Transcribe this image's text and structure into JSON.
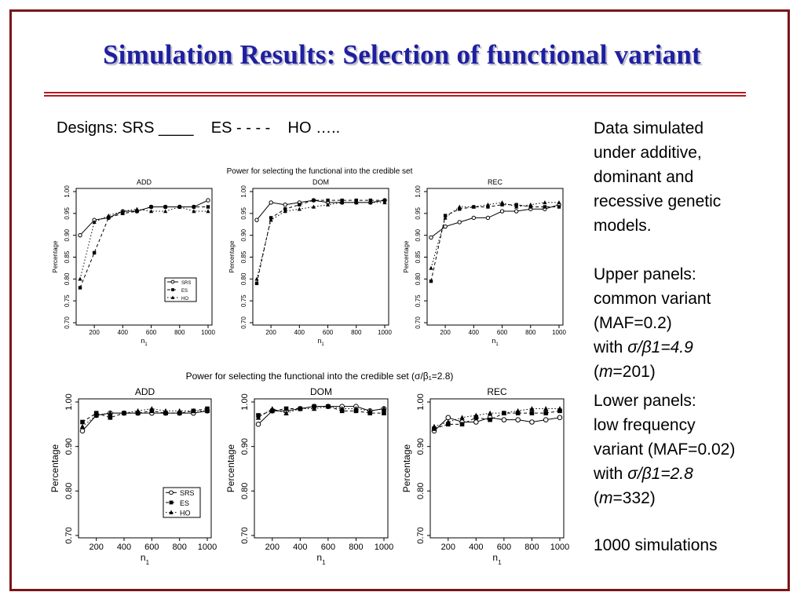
{
  "slide": {
    "title": "Simulation Results:  Selection of functional variant",
    "designs": "Designs: SRS ____    ES - - - -    HO …..",
    "colors": {
      "title": "#1f1fa0",
      "rule": "#b11d22",
      "frame": "#7b1418"
    }
  },
  "notes": {
    "block1": [
      "Data simulated",
      "under additive,",
      "dominant and",
      "recessive genetic",
      "models."
    ],
    "block2": {
      "l1": "Upper panels:",
      "l2": "common variant",
      "l3": "(MAF=0.2)",
      "l4_pre": "with ",
      "l4_it": "σ/β1=4.9",
      "l5_open": "(",
      "l5_it": "m",
      "l5_rest": "=201)"
    },
    "block3": {
      "l1": "Lower panels:",
      "l2": "low frequency",
      "l3": "variant (MAF=0.02)",
      "l4_pre": "with ",
      "l4_it": "σ/β1=2.8",
      "l5_open": "(",
      "l5_it": "m",
      "l5_rest": "=332)"
    },
    "block4": "1000 simulations"
  },
  "chart_data": [
    {
      "type": "line",
      "title": "Power for selecting the functional into the credible set",
      "xlabel": "n1",
      "ylabel": "Percentage",
      "x": [
        100,
        200,
        300,
        400,
        500,
        600,
        700,
        800,
        900,
        1000
      ],
      "xticks": [
        200,
        400,
        600,
        800,
        1000
      ],
      "ylim": [
        0.7,
        1.0
      ],
      "yticks": [
        0.7,
        0.75,
        0.8,
        0.85,
        0.9,
        0.95,
        1.0
      ],
      "ytick_labels": [
        "0.70",
        "0.75",
        "0.80",
        "0.85",
        "0.90",
        "0.95",
        "1.00"
      ],
      "legend": {
        "entries": [
          "SRS",
          "ES",
          "HO"
        ],
        "placement": "bottom-right of ADD panel"
      },
      "panels": [
        {
          "name": "ADD",
          "series": [
            {
              "name": "SRS",
              "values": [
                0.9,
                0.935,
                0.94,
                0.955,
                0.955,
                0.965,
                0.965,
                0.965,
                0.965,
                0.98
              ]
            },
            {
              "name": "ES",
              "values": [
                0.78,
                0.86,
                0.94,
                0.95,
                0.955,
                0.965,
                0.965,
                0.965,
                0.965,
                0.965
              ]
            },
            {
              "name": "HO",
              "values": [
                0.8,
                0.93,
                0.945,
                0.955,
                0.96,
                0.955,
                0.955,
                0.965,
                0.955,
                0.955
              ]
            }
          ]
        },
        {
          "name": "DOM",
          "series": [
            {
              "name": "SRS",
              "values": [
                0.935,
                0.975,
                0.97,
                0.975,
                0.98,
                0.975,
                0.975,
                0.975,
                0.975,
                0.98
              ]
            },
            {
              "name": "ES",
              "values": [
                0.79,
                0.94,
                0.96,
                0.97,
                0.98,
                0.98,
                0.98,
                0.98,
                0.98,
                0.98
              ]
            },
            {
              "name": "HO",
              "values": [
                0.8,
                0.935,
                0.955,
                0.96,
                0.965,
                0.97,
                0.975,
                0.975,
                0.975,
                0.975
              ]
            }
          ]
        },
        {
          "name": "REC",
          "series": [
            {
              "name": "SRS",
              "values": [
                0.895,
                0.92,
                0.93,
                0.94,
                0.94,
                0.955,
                0.955,
                0.96,
                0.96,
                0.97
              ]
            },
            {
              "name": "ES",
              "values": [
                0.795,
                0.945,
                0.96,
                0.965,
                0.965,
                0.97,
                0.97,
                0.965,
                0.965,
                0.965
              ]
            },
            {
              "name": "HO",
              "values": [
                0.825,
                0.94,
                0.965,
                0.965,
                0.97,
                0.975,
                0.965,
                0.97,
                0.975,
                0.975
              ]
            }
          ]
        }
      ]
    },
    {
      "type": "line",
      "title": "Power for selecting the functional into the credible set (σ/β₁=2.8)",
      "xlabel": "n1",
      "ylabel": "Percentage",
      "x": [
        100,
        200,
        300,
        400,
        500,
        600,
        700,
        800,
        900,
        1000
      ],
      "xticks": [
        200,
        400,
        600,
        800,
        1000
      ],
      "ylim": [
        0.7,
        1.0
      ],
      "yticks": [
        0.7,
        0.8,
        0.9,
        1.0
      ],
      "ytick_labels": [
        "0.70",
        "0.80",
        "0.90",
        "1.00"
      ],
      "legend": {
        "entries": [
          "SRS",
          "ES",
          "HO"
        ],
        "placement": "bottom-right of ADD panel"
      },
      "panels": [
        {
          "name": "ADD",
          "series": [
            {
              "name": "SRS",
              "values": [
                0.935,
                0.97,
                0.975,
                0.975,
                0.975,
                0.975,
                0.975,
                0.975,
                0.975,
                0.98
              ]
            },
            {
              "name": "ES",
              "values": [
                0.955,
                0.975,
                0.965,
                0.975,
                0.975,
                0.98,
                0.975,
                0.975,
                0.98,
                0.985
              ]
            },
            {
              "name": "HO",
              "values": [
                0.945,
                0.97,
                0.975,
                0.975,
                0.98,
                0.985,
                0.98,
                0.98,
                0.98,
                0.98
              ]
            }
          ]
        },
        {
          "name": "DOM",
          "series": [
            {
              "name": "SRS",
              "values": [
                0.95,
                0.98,
                0.98,
                0.985,
                0.99,
                0.99,
                0.99,
                0.99,
                0.98,
                0.985
              ]
            },
            {
              "name": "ES",
              "values": [
                0.97,
                0.98,
                0.985,
                0.985,
                0.99,
                0.99,
                0.98,
                0.98,
                0.975,
                0.975
              ]
            },
            {
              "name": "HO",
              "values": [
                0.965,
                0.985,
                0.975,
                0.985,
                0.985,
                0.99,
                0.985,
                0.985,
                0.98,
                0.985
              ]
            }
          ]
        },
        {
          "name": "REC",
          "series": [
            {
              "name": "SRS",
              "values": [
                0.935,
                0.965,
                0.955,
                0.955,
                0.965,
                0.96,
                0.96,
                0.955,
                0.96,
                0.965
              ]
            },
            {
              "name": "ES",
              "values": [
                0.94,
                0.95,
                0.95,
                0.965,
                0.96,
                0.975,
                0.975,
                0.975,
                0.975,
                0.98
              ]
            },
            {
              "name": "HO",
              "values": [
                0.945,
                0.955,
                0.965,
                0.97,
                0.975,
                0.975,
                0.98,
                0.985,
                0.985,
                0.985
              ]
            }
          ]
        }
      ]
    }
  ]
}
